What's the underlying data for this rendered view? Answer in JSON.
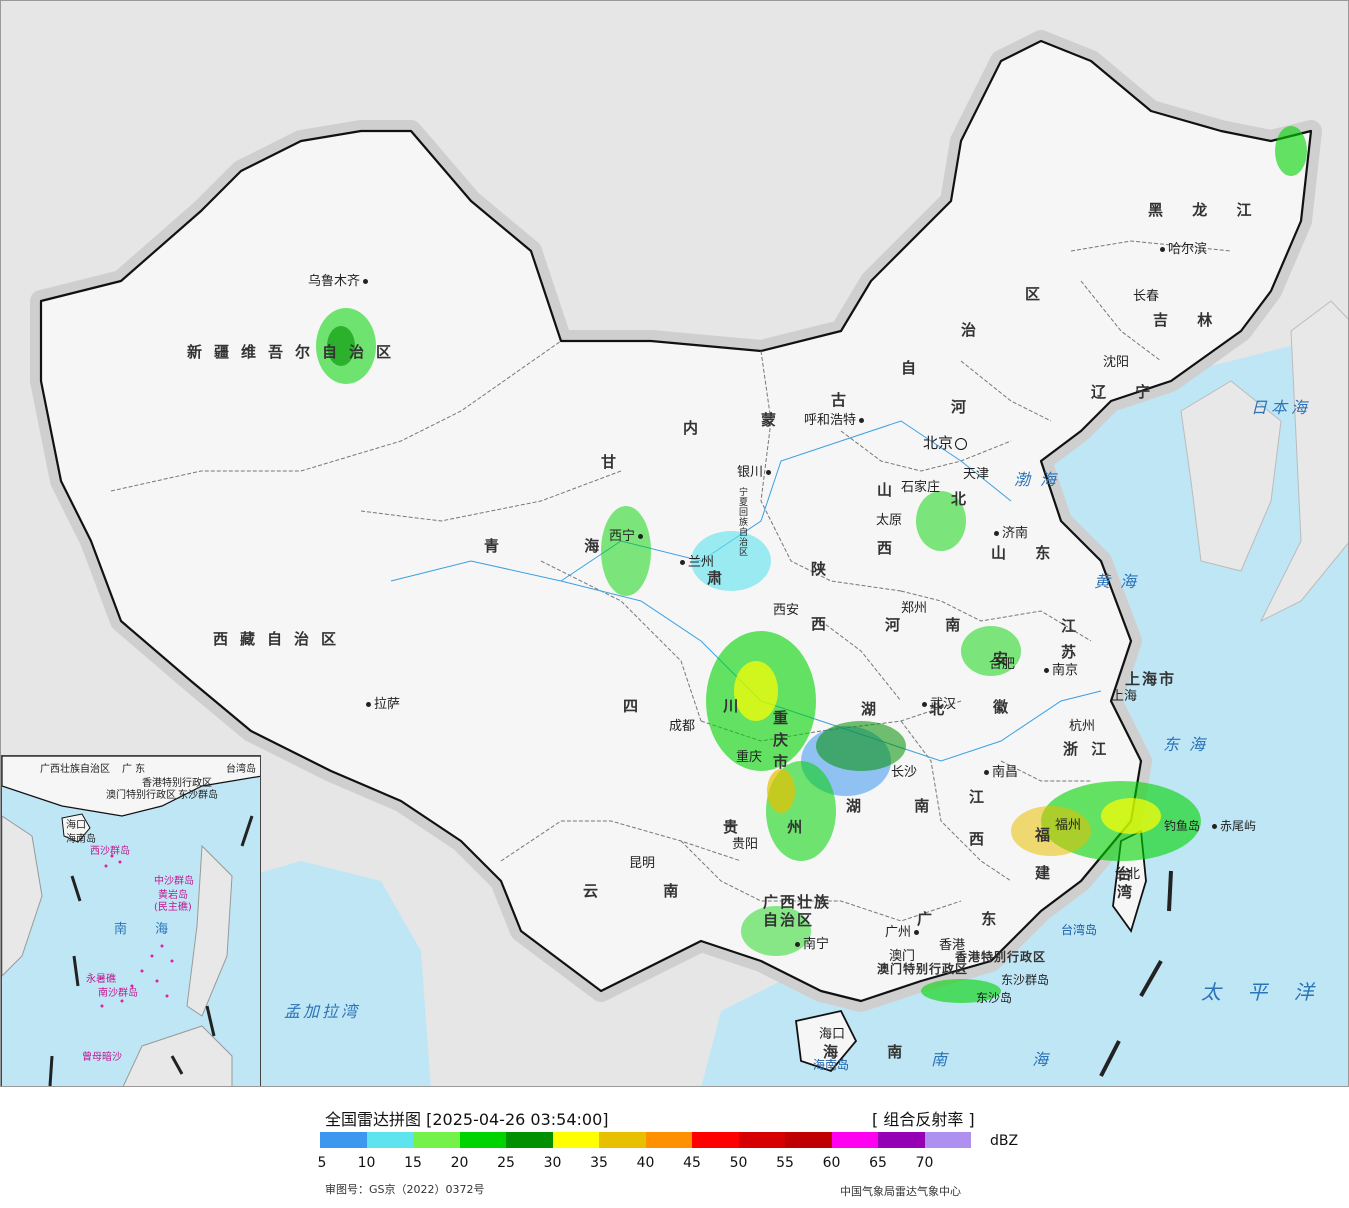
{
  "map": {
    "provinces": [
      {
        "id": "xinjiang",
        "name": "新疆维吾尔自治区"
      },
      {
        "id": "xizang",
        "name": "西藏自治区"
      },
      {
        "id": "qinghai",
        "name": "青 海"
      },
      {
        "id": "gansu",
        "name": "甘"
      },
      {
        "id": "gansu2",
        "name": "肃"
      },
      {
        "id": "neimenggu1",
        "name": "内"
      },
      {
        "id": "neimenggu2",
        "name": "蒙"
      },
      {
        "id": "neimenggu3",
        "name": "古"
      },
      {
        "id": "neimenggu4",
        "name": "自"
      },
      {
        "id": "neimenggu5",
        "name": "治"
      },
      {
        "id": "neimenggu6",
        "name": "区"
      },
      {
        "id": "heilongjiang",
        "name": "黑 龙 江"
      },
      {
        "id": "jilin",
        "name": "吉 林"
      },
      {
        "id": "liaoning",
        "name": "辽 宁"
      },
      {
        "id": "hebei1",
        "name": "河"
      },
      {
        "id": "hebei2",
        "name": "北"
      },
      {
        "id": "shanxi",
        "name": "山"
      },
      {
        "id": "shanxi2",
        "name": "西"
      },
      {
        "id": "shandong",
        "name": "山 东"
      },
      {
        "id": "henan",
        "name": "河 南"
      },
      {
        "id": "shaanxi",
        "name": "陕"
      },
      {
        "id": "shaanxi2",
        "name": "西"
      },
      {
        "id": "ningxia",
        "name": "宁夏回族自治区"
      },
      {
        "id": "sichuan",
        "name": "四 川"
      },
      {
        "id": "chongqing",
        "name": "重庆市"
      },
      {
        "id": "hubei",
        "name": "湖 北"
      },
      {
        "id": "hunan",
        "name": "湖 南"
      },
      {
        "id": "anhui",
        "name": "安徽"
      },
      {
        "id": "jiangsu",
        "name": "江 苏"
      },
      {
        "id": "shanghai",
        "name": "上海市"
      },
      {
        "id": "zhejiang",
        "name": "浙 江"
      },
      {
        "id": "jiangxi",
        "name": "江 西"
      },
      {
        "id": "fujian",
        "name": "福 建"
      },
      {
        "id": "guizhou",
        "name": "贵 州"
      },
      {
        "id": "yunnan",
        "name": "云 南"
      },
      {
        "id": "guangxi",
        "name": "广西壮族自治区"
      },
      {
        "id": "guangdong",
        "name": "广 东"
      },
      {
        "id": "taiwan",
        "name": "台湾"
      },
      {
        "id": "hainan",
        "name": "海 南"
      },
      {
        "id": "hongkong",
        "name": "香港特别行政区"
      },
      {
        "id": "macau",
        "name": "澳门特别行政区"
      }
    ],
    "cities": [
      {
        "id": "urumqi",
        "name": "乌鲁木齐"
      },
      {
        "id": "lhasa",
        "name": "拉萨"
      },
      {
        "id": "xining",
        "name": "西宁"
      },
      {
        "id": "lanzhou",
        "name": "兰州"
      },
      {
        "id": "yinchuan",
        "name": "银川"
      },
      {
        "id": "hohhot",
        "name": "呼和浩特"
      },
      {
        "id": "harbin",
        "name": "哈尔滨"
      },
      {
        "id": "changchun",
        "name": "长春"
      },
      {
        "id": "shenyang",
        "name": "沈阳"
      },
      {
        "id": "beijing",
        "name": "北京"
      },
      {
        "id": "tianjin",
        "name": "天津"
      },
      {
        "id": "shijiazhuang",
        "name": "石家庄"
      },
      {
        "id": "taiyuan",
        "name": "太原"
      },
      {
        "id": "jinan",
        "name": "济南"
      },
      {
        "id": "zhengzhou",
        "name": "郑州"
      },
      {
        "id": "xian",
        "name": "西安"
      },
      {
        "id": "chengdu",
        "name": "成都"
      },
      {
        "id": "chongqingc",
        "name": "重庆"
      },
      {
        "id": "wuhan",
        "name": "武汉"
      },
      {
        "id": "changsha",
        "name": "长沙"
      },
      {
        "id": "hefei",
        "name": "合肥"
      },
      {
        "id": "nanjing",
        "name": "南京"
      },
      {
        "id": "shanghaic",
        "name": "上海"
      },
      {
        "id": "hangzhou",
        "name": "杭州"
      },
      {
        "id": "nanchang",
        "name": "南昌"
      },
      {
        "id": "fuzhou",
        "name": "福州"
      },
      {
        "id": "guiyang",
        "name": "贵阳"
      },
      {
        "id": "kunming",
        "name": "昆明"
      },
      {
        "id": "nanning",
        "name": "南宁"
      },
      {
        "id": "guangzhou",
        "name": "广州"
      },
      {
        "id": "hongkongc",
        "name": "香港"
      },
      {
        "id": "macauc",
        "name": "澳门"
      },
      {
        "id": "haikou",
        "name": "海口"
      },
      {
        "id": "taibei",
        "name": "台北"
      }
    ],
    "seas": [
      {
        "id": "bohai",
        "name": "渤海"
      },
      {
        "id": "huanghai",
        "name": "黄海"
      },
      {
        "id": "donghai",
        "name": "东海"
      },
      {
        "id": "nanhai",
        "name": "南 海"
      },
      {
        "id": "japan-sea",
        "name": "日本海"
      },
      {
        "id": "pacific",
        "name": "太 平 洋"
      },
      {
        "id": "bengal",
        "name": "孟加拉湾"
      }
    ],
    "islands": [
      {
        "id": "diaoyu",
        "name": "钓鱼岛"
      },
      {
        "id": "chiwei",
        "name": "赤尾屿"
      },
      {
        "id": "taiwan-island",
        "name": "台湾岛"
      },
      {
        "id": "hainan-island",
        "name": "海南岛"
      },
      {
        "id": "dongsha",
        "name": "东沙群岛"
      },
      {
        "id": "dongsha-isl",
        "name": "东沙岛"
      }
    ],
    "inset": {
      "labels": [
        {
          "id": "i-guangxi",
          "name": "广西壮族自治区"
        },
        {
          "id": "i-guangdong",
          "name": "广 东"
        },
        {
          "id": "i-taiwan",
          "name": "台湾岛"
        },
        {
          "id": "i-hk",
          "name": "香港特别行政区"
        },
        {
          "id": "i-macau",
          "name": "澳门特别行政区"
        },
        {
          "id": "i-dongsha",
          "name": "东沙群岛"
        },
        {
          "id": "i-haikou",
          "name": "海口"
        },
        {
          "id": "i-hainan",
          "name": "海南岛"
        },
        {
          "id": "i-xisha",
          "name": "西沙群岛"
        },
        {
          "id": "i-zhongsha",
          "name": "中沙群岛"
        },
        {
          "id": "i-huangyan",
          "name": "黄岩岛"
        },
        {
          "id": "i-huangyan2",
          "name": "(民主礁)"
        },
        {
          "id": "i-nanhai",
          "name": "南 海"
        },
        {
          "id": "i-yongshu",
          "name": "永暑礁"
        },
        {
          "id": "i-nansha",
          "name": "南沙群岛"
        },
        {
          "id": "i-zengmu",
          "name": "曾母暗沙"
        }
      ]
    }
  },
  "legend": {
    "title": "全国雷达拼图 [2025-04-26 03:54:00]",
    "kind": "[ 组合反射率 ]",
    "unit": "dBZ",
    "colors": [
      "#3d96f0",
      "#5ee4ee",
      "#74f24a",
      "#00d400",
      "#009000",
      "#ffff00",
      "#e7c000",
      "#ff9000",
      "#ff0000",
      "#d60000",
      "#c00000",
      "#ff00f0",
      "#9600b4",
      "#ad90f0"
    ],
    "ticks": [
      "5",
      "10",
      "15",
      "20",
      "25",
      "30",
      "35",
      "40",
      "45",
      "50",
      "55",
      "60",
      "65",
      "70"
    ],
    "review": "审图号：GS京（2022）0372号",
    "source": "中国气象局雷达气象中心"
  }
}
